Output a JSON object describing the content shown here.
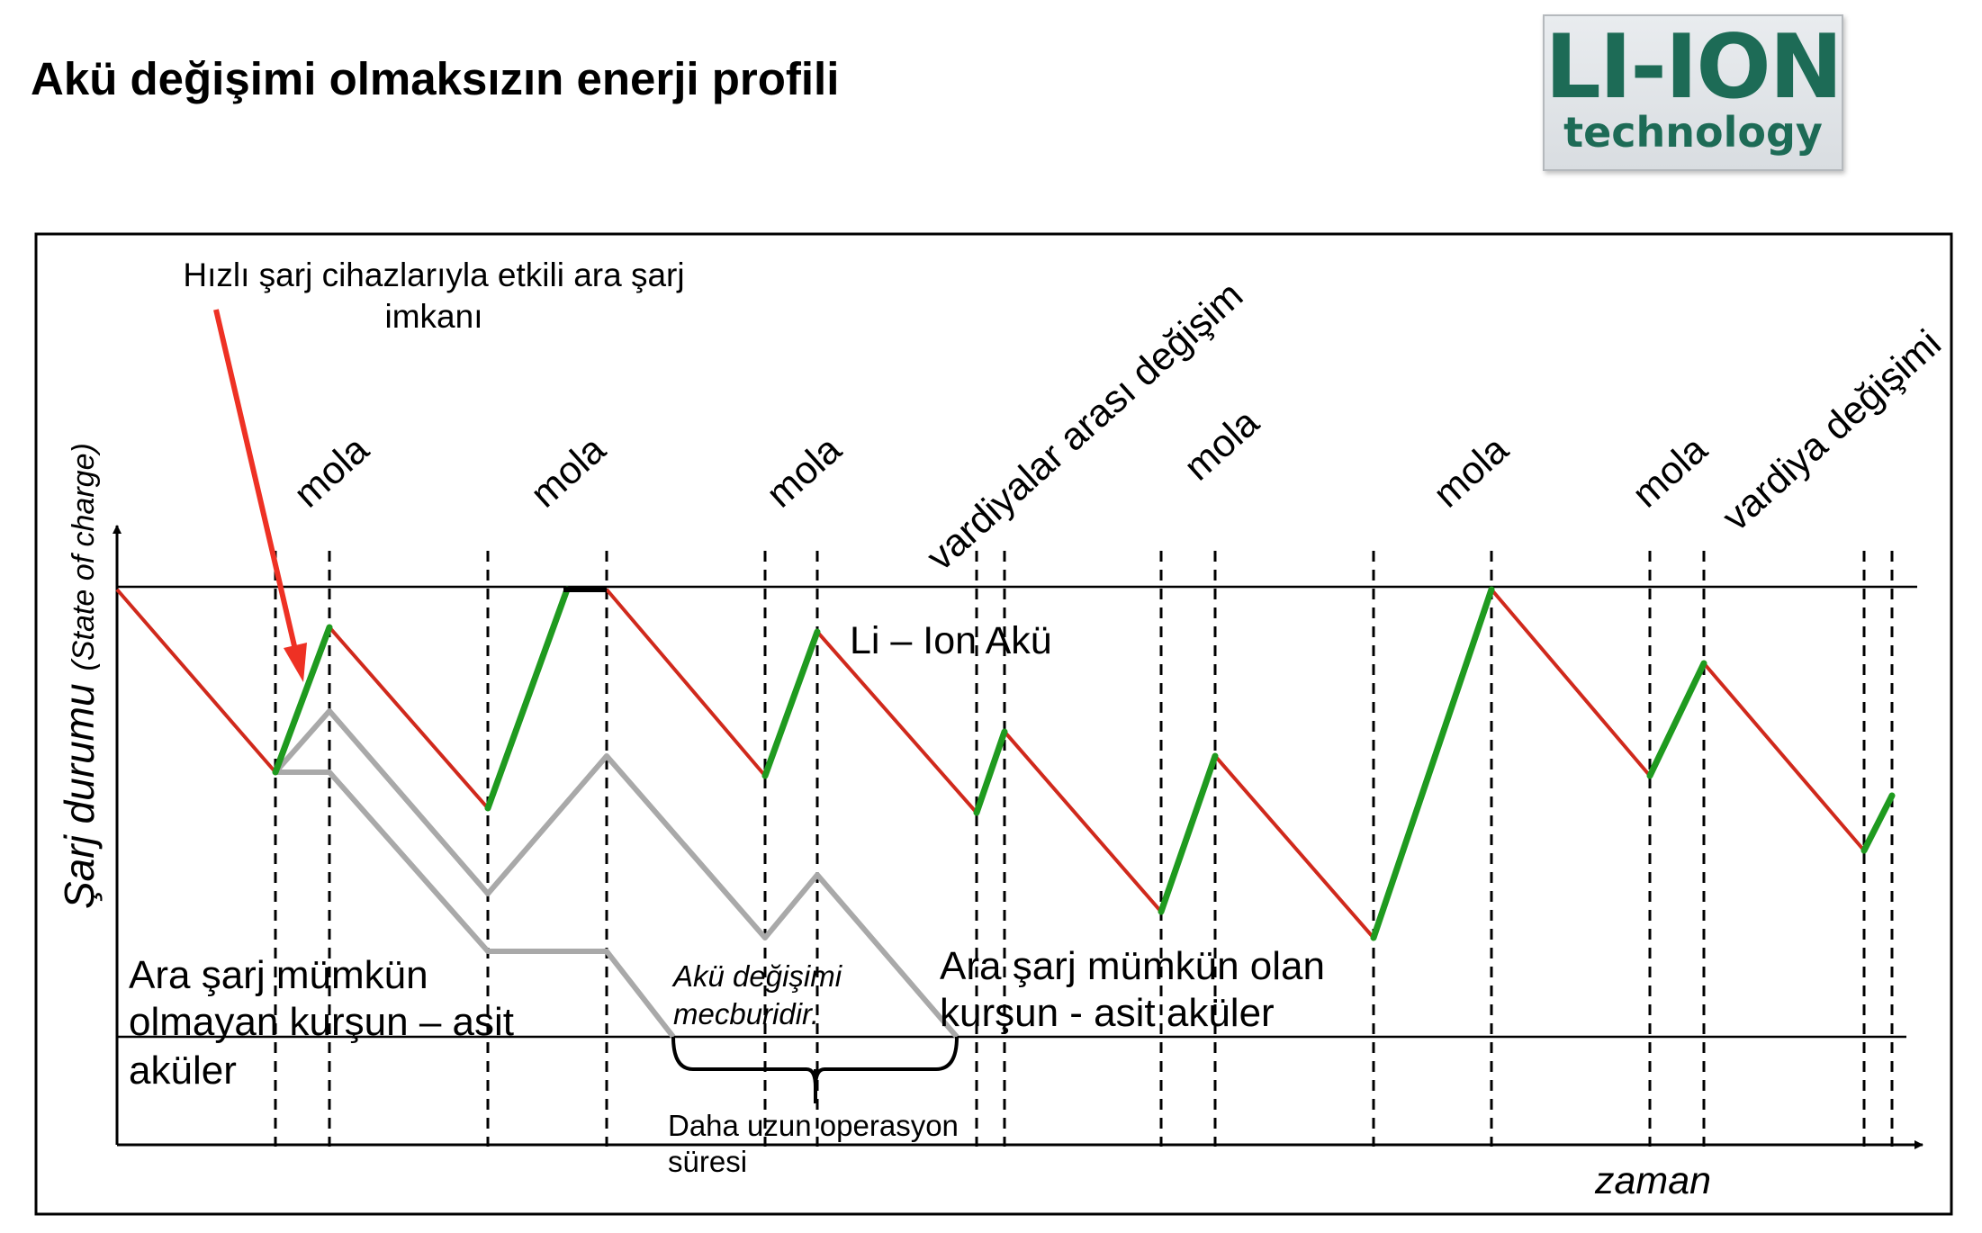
{
  "title": "Akü değişimi olmaksızın enerji profili",
  "logo": {
    "main": "LI-ION",
    "sub": "technology"
  },
  "colors": {
    "discharge": "#d0291c",
    "charge": "#1f9a1f",
    "lead_acid": "#a9a9a9",
    "arrow": "#ee3124",
    "logo": "#1d6b56"
  },
  "axes": {
    "y_label": "Şarj durumu",
    "y_label_sub": "(State of charge)",
    "x_label": "zaman"
  },
  "annotations": {
    "fast_charge_line1": "Hızlı şarj cihazlarıyla etkili ara şarj",
    "fast_charge_line2": "imkanı",
    "li_ion": "Li – Ion Akü",
    "no_charge_line1": "Ara şarj mümkün",
    "no_charge_line2": "olmayan kurşun – asit",
    "no_charge_line3": "aküler",
    "battery_change_line1": "Akü değişimi",
    "battery_change_line2": "mecburidir.",
    "with_charge_line1": "Ara şarj mümkün olan",
    "with_charge_line2": "kurşun - asit aküler",
    "longer_operation_line1": "Daha uzun operasyon",
    "longer_operation_line2": "süresi"
  },
  "periods": [
    {
      "label": "mola"
    },
    {
      "label": "mola"
    },
    {
      "label": "mola"
    },
    {
      "label": "vardiyalar arası değişim"
    },
    {
      "label": "mola"
    },
    {
      "label": "mola"
    },
    {
      "label": "mola"
    },
    {
      "label": "vardiya değişimi"
    }
  ]
}
